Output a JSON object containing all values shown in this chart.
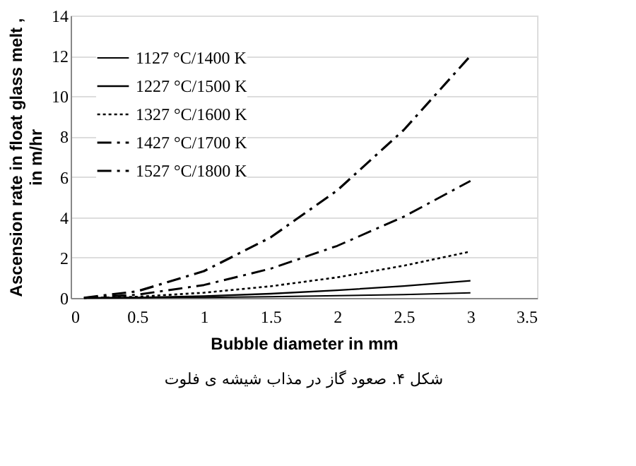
{
  "chart_data": {
    "type": "line",
    "xlabel": "Bubble diameter in mm",
    "ylabel": "Ascension rate in float glass melt ,\nin m/hr",
    "x": [
      0.1,
      0.5,
      1,
      1.5,
      2,
      2.5,
      3
    ],
    "series": [
      {
        "name": "1127 °C/1400 K",
        "color": "#000000",
        "line_style": "solid",
        "values": [
          0,
          0.01,
          0.03,
          0.06,
          0.11,
          0.17,
          0.25
        ]
      },
      {
        "name": "1227 °C/1500 K",
        "color": "#000000",
        "line_style": "solid",
        "values": [
          0,
          0.02,
          0.09,
          0.21,
          0.38,
          0.59,
          0.85
        ]
      },
      {
        "name": "1327 °C/1600 K",
        "color": "#000000",
        "line_style": "dotted",
        "values": [
          0,
          0.06,
          0.26,
          0.58,
          1.02,
          1.6,
          2.3
        ]
      },
      {
        "name": "1427 °C/1700 K",
        "color": "#000000",
        "line_style": "dashed",
        "values": [
          0.01,
          0.16,
          0.64,
          1.45,
          2.58,
          4.03,
          5.8
        ]
      },
      {
        "name": "1527 °C/1800 K",
        "color": "#000000",
        "line_style": "dashed",
        "values": [
          0.01,
          0.33,
          1.33,
          3,
          5.33,
          8.33,
          12
        ]
      }
    ],
    "xlim": [
      0,
      3.5
    ],
    "xticks": [
      0,
      0.5,
      1,
      1.5,
      2,
      2.5,
      3,
      3.5
    ],
    "ylim": [
      0,
      14
    ],
    "yticks": [
      0,
      2,
      4,
      6,
      8,
      10,
      12,
      14
    ],
    "grid": "y",
    "legend": "top left",
    "marker": "none",
    "annotations": [
      "شکل ۴. صعود گاز در مذاب شیشه ی فلوت"
    ]
  }
}
